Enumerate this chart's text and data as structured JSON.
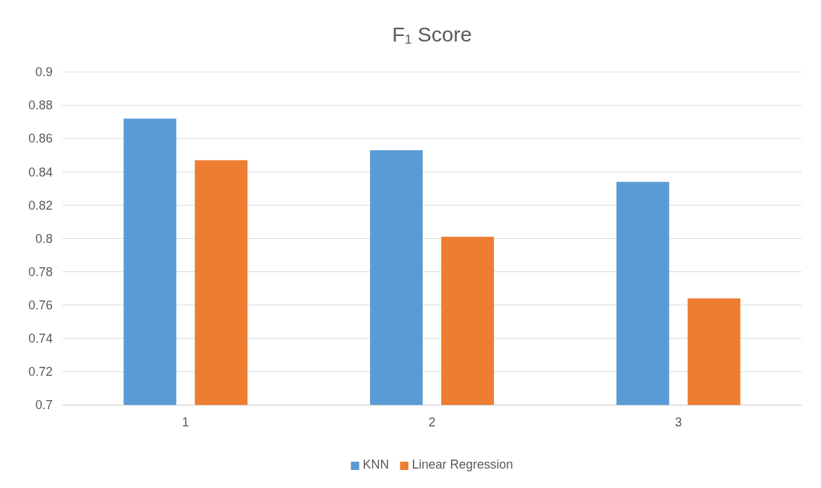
{
  "chart_data": {
    "type": "bar",
    "title": "F₁ Score",
    "categories": [
      "1",
      "2",
      "3"
    ],
    "series": [
      {
        "name": "KNN",
        "color": "#5b9bd5",
        "values": [
          0.872,
          0.853,
          0.834
        ]
      },
      {
        "name": "Linear Regression",
        "color": "#ed7d31",
        "values": [
          0.847,
          0.801,
          0.764
        ]
      }
    ],
    "ylim": [
      0.7,
      0.9
    ],
    "yticks": [
      0.7,
      0.72,
      0.74,
      0.76,
      0.78,
      0.8,
      0.82,
      0.84,
      0.86,
      0.88,
      0.9
    ],
    "grid": "y",
    "legend": "bottom"
  }
}
